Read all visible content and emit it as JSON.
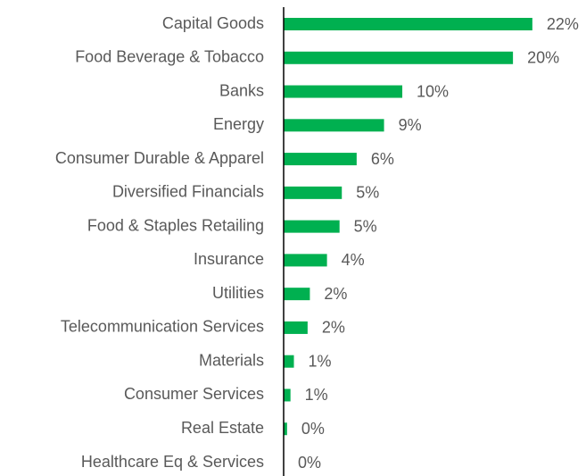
{
  "chart_data": {
    "type": "bar",
    "orientation": "horizontal",
    "categories": [
      "Capital Goods",
      "Food Beverage & Tobacco",
      "Banks",
      "Energy",
      "Consumer Durable & Apparel",
      "Diversified Financials",
      "Food & Staples Retailing",
      "Insurance",
      "Utilities",
      "Telecommunication Services",
      "Materials",
      "Consumer Services",
      "Real Estate",
      "Healthcare Eq & Services"
    ],
    "values": [
      21.8,
      20.1,
      10.4,
      8.8,
      6.4,
      5.1,
      4.9,
      3.8,
      2.3,
      2.1,
      0.9,
      0.6,
      0.3,
      0
    ],
    "value_labels": [
      "22%",
      "20%",
      "10%",
      "9%",
      "6%",
      "5%",
      "5%",
      "4%",
      "2%",
      "2%",
      "1%",
      "1%",
      "0%",
      "0%"
    ],
    "color": "#00b050",
    "xlim": [
      0,
      24
    ]
  }
}
